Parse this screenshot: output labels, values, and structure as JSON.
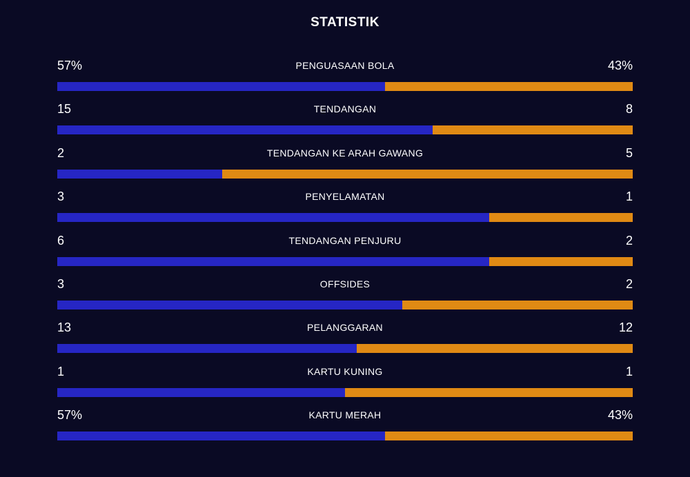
{
  "title": "STATISTIK",
  "colors": {
    "background": "#0a0a24",
    "home": "#2626c4",
    "away": "#e08a14"
  },
  "stats": [
    {
      "label": "PENGUASAAN BOLA",
      "left": "57%",
      "right": "43%",
      "left_share": 0.57
    },
    {
      "label": "TENDANGAN",
      "left": "15",
      "right": "8",
      "left_share": 0.652
    },
    {
      "label": "TENDANGAN KE ARAH GAWANG",
      "left": "2",
      "right": "5",
      "left_share": 0.286
    },
    {
      "label": "PENYELAMATAN",
      "left": "3",
      "right": "1",
      "left_share": 0.75
    },
    {
      "label": "TENDANGAN PENJURU",
      "left": "6",
      "right": "2",
      "left_share": 0.75
    },
    {
      "label": "OFFSIDES",
      "left": "3",
      "right": "2",
      "left_share": 0.6
    },
    {
      "label": "PELANGGARAN",
      "left": "13",
      "right": "12",
      "left_share": 0.52
    },
    {
      "label": "KARTU KUNING",
      "left": "1",
      "right": "1",
      "left_share": 0.5
    },
    {
      "label": "KARTU MERAH",
      "left": "57%",
      "right": "43%",
      "left_share": 0.57
    }
  ]
}
